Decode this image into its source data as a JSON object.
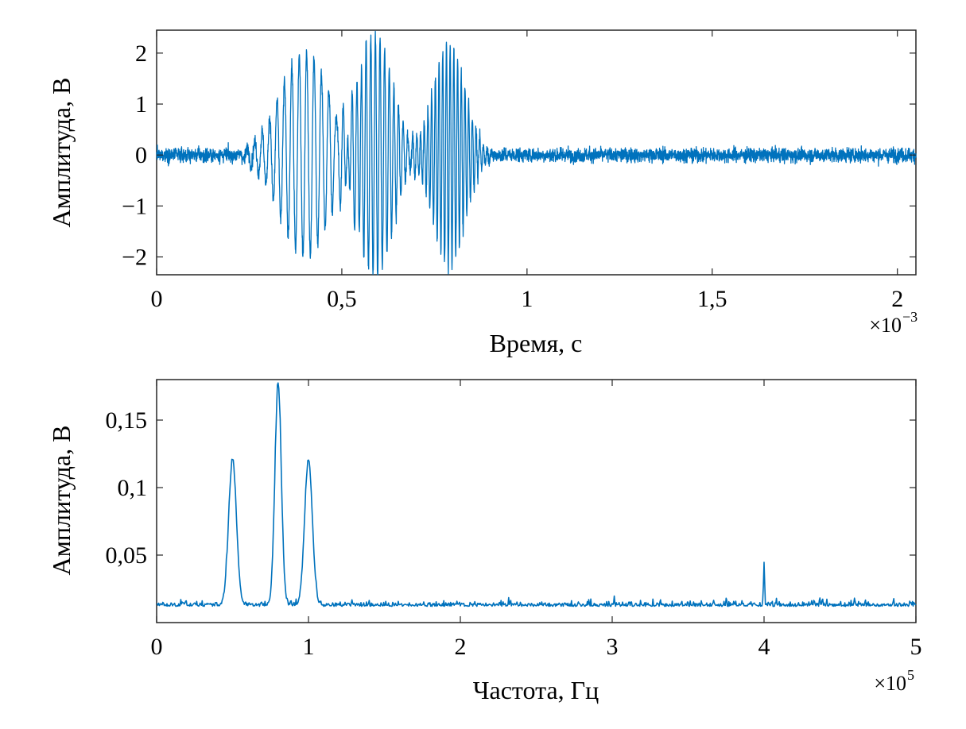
{
  "chart_data": [
    {
      "type": "line",
      "xlabel": "Время, с",
      "ylabel": "Амплитуда, В",
      "x_multiplier": {
        "base": "×10",
        "exponent": "−3"
      },
      "xlim": [
        0,
        2.05
      ],
      "ylim": [
        -2.35,
        2.45
      ],
      "xticks": [
        0,
        0.5,
        1,
        1.5,
        2
      ],
      "xtick_labels": [
        "0",
        "0,5",
        "1",
        "1,5",
        "2"
      ],
      "yticks": [
        -2,
        -1,
        0,
        1,
        2
      ],
      "ytick_labels": [
        "−2",
        "−1",
        "0",
        "1",
        "2"
      ],
      "grid": false,
      "line_color": "#0072BD",
      "series": [
        {
          "noise_amplitude": 0.3,
          "bursts": [
            {
              "center": 0.4,
              "half_width": 0.14,
              "frequency_hz": 50000,
              "peak_amplitude": 2.0
            },
            {
              "center": 0.59,
              "half_width": 0.1,
              "frequency_hz": 80000,
              "peak_amplitude": 2.4
            },
            {
              "center": 0.79,
              "half_width": 0.09,
              "frequency_hz": 100000,
              "peak_amplitude": 2.2
            }
          ]
        }
      ]
    },
    {
      "type": "line",
      "xlabel": "Частота, Гц",
      "ylabel": "Амплитуда, В",
      "x_multiplier": {
        "base": "×10",
        "exponent": "5"
      },
      "xlim": [
        0,
        5
      ],
      "ylim": [
        0,
        0.18
      ],
      "xticks": [
        0,
        1,
        2,
        3,
        4,
        5
      ],
      "xtick_labels": [
        "0",
        "1",
        "2",
        "3",
        "4",
        "5"
      ],
      "yticks": [
        0.05,
        0.1,
        0.15
      ],
      "ytick_labels": [
        "0,05",
        "0,1",
        "0,15"
      ],
      "grid": false,
      "line_color": "#0072BD",
      "series": [
        {
          "noise_floor": 0.012,
          "peaks": [
            {
              "x": 0.5,
              "y": 0.12,
              "width": 0.03
            },
            {
              "x": 0.8,
              "y": 0.175,
              "width": 0.025
            },
            {
              "x": 1.0,
              "y": 0.12,
              "width": 0.03
            },
            {
              "x": 4.0,
              "y": 0.044,
              "width": 0.004
            }
          ]
        }
      ]
    }
  ]
}
